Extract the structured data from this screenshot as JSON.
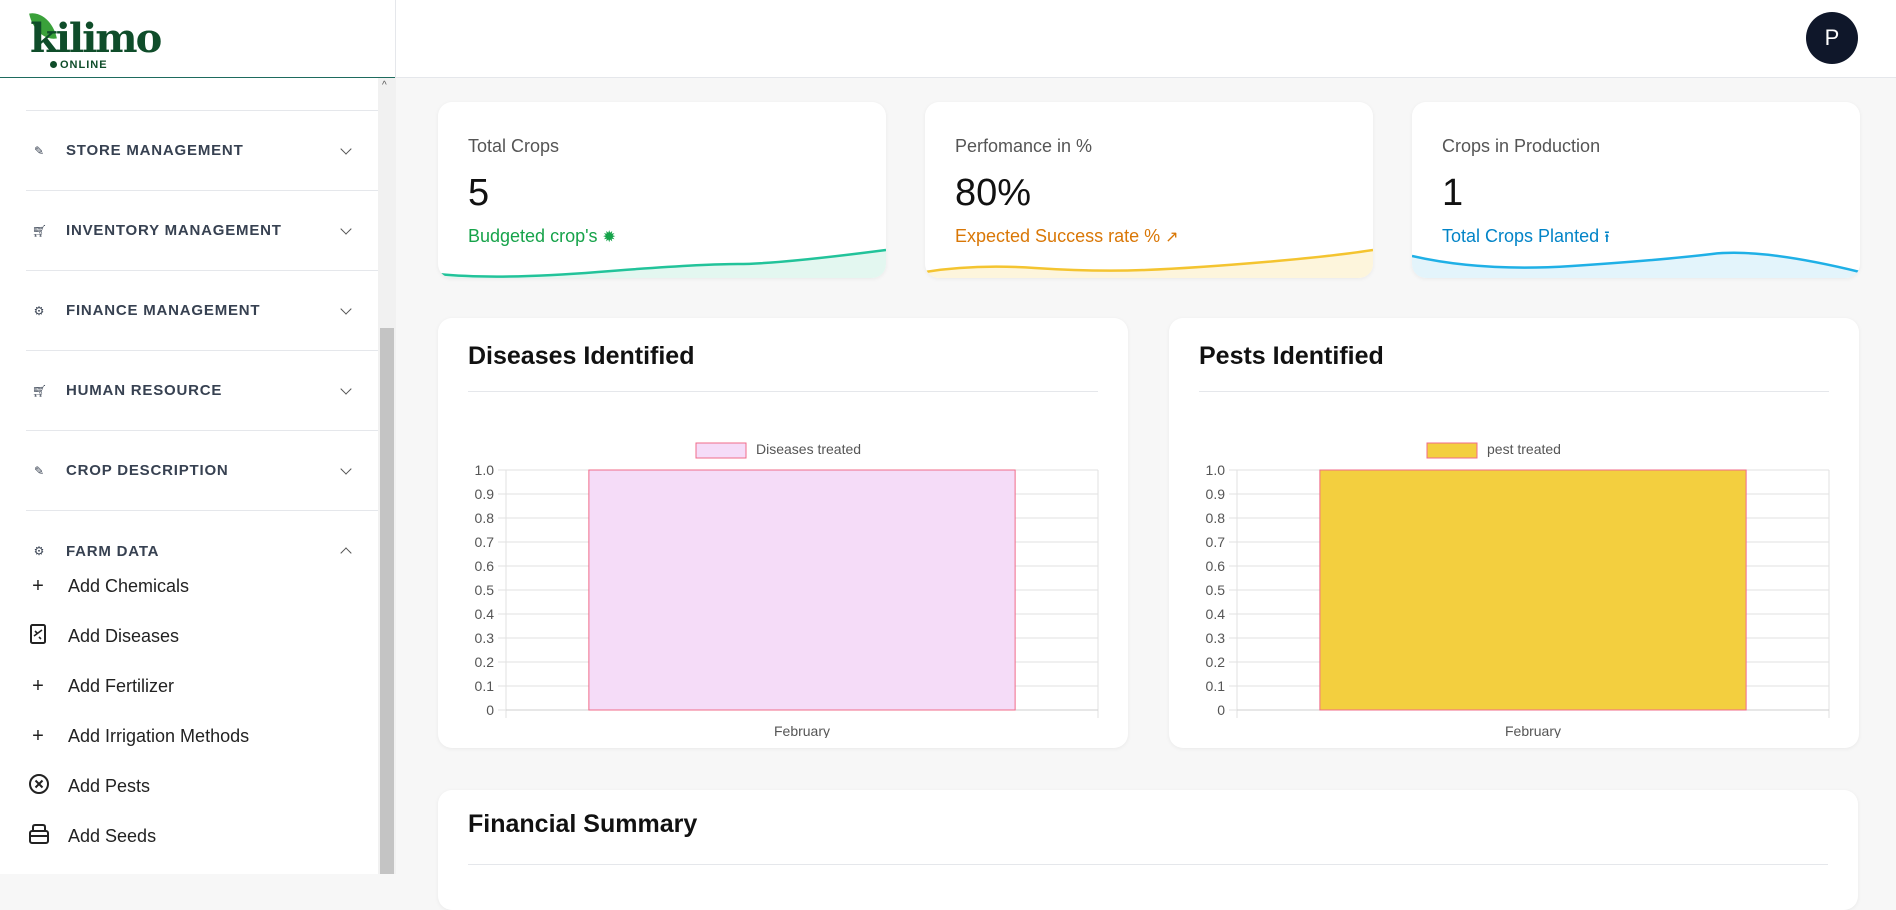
{
  "brand": {
    "logo_word": "kilimo",
    "logo_sub": "ONLINE"
  },
  "header": {
    "avatar_initial": "P"
  },
  "sidebar": {
    "items": [
      {
        "label": "STORE MANAGEMENT",
        "icon": "pencil-icon"
      },
      {
        "label": "INVENTORY MANAGEMENT",
        "icon": "cart-icon"
      },
      {
        "label": "FINANCE MANAGEMENT",
        "icon": "gear-icon"
      },
      {
        "label": "HUMAN RESOURCE",
        "icon": "cart-icon"
      },
      {
        "label": "CROP DESCRIPTION",
        "icon": "pencil-icon"
      },
      {
        "label": "FARM DATA",
        "icon": "gear-icon",
        "expanded": true
      }
    ],
    "farm_data_children": [
      {
        "label": "Add Chemicals",
        "icon": "plus-icon"
      },
      {
        "label": "Add Diseases",
        "icon": "clipboard-icon"
      },
      {
        "label": "Add Fertilizer",
        "icon": "plus-icon"
      },
      {
        "label": "Add Irrigation Methods",
        "icon": "plus-icon"
      },
      {
        "label": "Add Pests",
        "icon": "circle-x-icon"
      },
      {
        "label": "Add Seeds",
        "icon": "box-icon"
      }
    ]
  },
  "stats": [
    {
      "title": "Total Crops",
      "value": "5",
      "subtitle": "Budgeted crop's",
      "sub_icon": "sun-icon",
      "color": "#16a34a",
      "wave": "#22c39a"
    },
    {
      "title": "Perfomance in %",
      "value": "80%",
      "subtitle": "Expected Success rate %",
      "sub_icon": "trend-up-icon",
      "color": "#d97706",
      "wave": "#f4c430"
    },
    {
      "title": "Crops in Production",
      "value": "1",
      "subtitle": "Total Crops Planted",
      "sub_icon": "upload-icon",
      "color": "#0284c7",
      "wave": "#1fb0e6"
    }
  ],
  "charts": {
    "diseases": {
      "title": "Diseases Identified"
    },
    "pests": {
      "title": "Pests Identified"
    }
  },
  "financial_summary": {
    "title": "Financial Summary"
  },
  "chart_data": [
    {
      "type": "bar",
      "title": "Diseases Identified",
      "categories": [
        "February"
      ],
      "series": [
        {
          "name": "Diseases treated",
          "values": [
            1
          ]
        }
      ],
      "ylim": [
        0,
        1.0
      ],
      "yticks": [
        "0",
        "0.1",
        "0.2",
        "0.3",
        "0.4",
        "0.5",
        "0.6",
        "0.7",
        "0.8",
        "0.9",
        "1.0"
      ],
      "legend": "top-center",
      "grid": true,
      "fill": "#f5dcf8",
      "stroke": "#f06b8a"
    },
    {
      "type": "bar",
      "title": "Pests Identified",
      "categories": [
        "February"
      ],
      "series": [
        {
          "name": "pest treated",
          "values": [
            1
          ]
        }
      ],
      "ylim": [
        0,
        1.0
      ],
      "yticks": [
        "0",
        "0.1",
        "0.2",
        "0.3",
        "0.4",
        "0.5",
        "0.6",
        "0.7",
        "0.8",
        "0.9",
        "1.0"
      ],
      "legend": "top-center",
      "grid": true,
      "fill": "#f3cf3f",
      "stroke": "#f06b8a"
    }
  ]
}
